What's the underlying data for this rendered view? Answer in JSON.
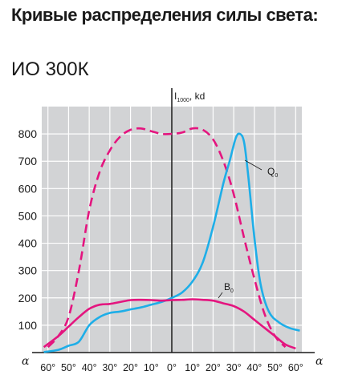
{
  "header": {
    "title": "Кривые распределения силы света:",
    "subtitle": "ИО 300К"
  },
  "chart_data": {
    "type": "line",
    "y_label_main": "I",
    "y_label_sub": "1000",
    "y_label_unit": ", kd",
    "x_axis_symbol": "α",
    "x_ticks": [
      "60°",
      "50°",
      "40°",
      "30°",
      "20°",
      "10°",
      "0°",
      "10°",
      "20°",
      "30°",
      "40°",
      "50°",
      "60°"
    ],
    "y_ticks": [
      100,
      200,
      300,
      400,
      500,
      600,
      700,
      800
    ],
    "ylim": [
      0,
      900
    ],
    "xlim": [
      -63,
      63
    ],
    "grid": true,
    "series": [
      {
        "name": "",
        "color": "#e4157f",
        "style": "dashed",
        "points": [
          [
            -60,
            20
          ],
          [
            -55,
            60
          ],
          [
            -50,
            130
          ],
          [
            -45,
            300
          ],
          [
            -40,
            520
          ],
          [
            -35,
            660
          ],
          [
            -30,
            740
          ],
          [
            -25,
            790
          ],
          [
            -20,
            815
          ],
          [
            -15,
            820
          ],
          [
            -10,
            810
          ],
          [
            -5,
            800
          ],
          [
            0,
            800
          ],
          [
            5,
            805
          ],
          [
            10,
            820
          ],
          [
            15,
            815
          ],
          [
            20,
            780
          ],
          [
            25,
            700
          ],
          [
            30,
            580
          ],
          [
            35,
            420
          ],
          [
            40,
            270
          ],
          [
            45,
            140
          ],
          [
            50,
            60
          ],
          [
            55,
            20
          ]
        ]
      },
      {
        "name": "Q",
        "label_sub": "0",
        "color": "#1eaee8",
        "style": "solid",
        "points": [
          [
            -62,
            2
          ],
          [
            -55,
            10
          ],
          [
            -50,
            25
          ],
          [
            -45,
            40
          ],
          [
            -40,
            100
          ],
          [
            -35,
            130
          ],
          [
            -30,
            145
          ],
          [
            -25,
            150
          ],
          [
            -20,
            158
          ],
          [
            -15,
            165
          ],
          [
            -10,
            175
          ],
          [
            -5,
            185
          ],
          [
            0,
            200
          ],
          [
            5,
            220
          ],
          [
            10,
            260
          ],
          [
            15,
            330
          ],
          [
            20,
            460
          ],
          [
            25,
            620
          ],
          [
            28,
            700
          ],
          [
            31,
            785
          ],
          [
            33,
            800
          ],
          [
            35,
            770
          ],
          [
            37,
            650
          ],
          [
            40,
            420
          ],
          [
            43,
            250
          ],
          [
            47,
            150
          ],
          [
            52,
            110
          ],
          [
            57,
            90
          ],
          [
            62,
            80
          ]
        ]
      },
      {
        "name": "B",
        "label_sub": "0",
        "color": "#e4157f",
        "style": "solid",
        "points": [
          [
            -62,
            20
          ],
          [
            -55,
            60
          ],
          [
            -50,
            95
          ],
          [
            -45,
            130
          ],
          [
            -40,
            160
          ],
          [
            -35,
            175
          ],
          [
            -30,
            178
          ],
          [
            -25,
            185
          ],
          [
            -20,
            192
          ],
          [
            -15,
            193
          ],
          [
            -10,
            192
          ],
          [
            -5,
            190
          ],
          [
            0,
            192
          ],
          [
            5,
            193
          ],
          [
            10,
            195
          ],
          [
            15,
            193
          ],
          [
            20,
            190
          ],
          [
            25,
            180
          ],
          [
            30,
            170
          ],
          [
            35,
            150
          ],
          [
            40,
            120
          ],
          [
            45,
            90
          ],
          [
            50,
            60
          ],
          [
            55,
            30
          ],
          [
            60,
            15
          ]
        ]
      }
    ]
  }
}
